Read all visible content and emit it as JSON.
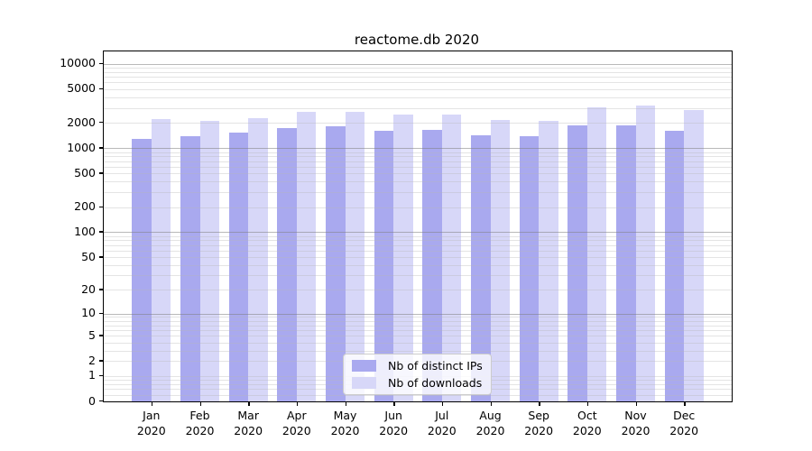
{
  "chart_data": {
    "type": "bar",
    "title": "reactome.db 2020",
    "categories": [
      "Jan",
      "Feb",
      "Mar",
      "Apr",
      "May",
      "Jun",
      "Jul",
      "Aug",
      "Sep",
      "Oct",
      "Nov",
      "Dec"
    ],
    "x_tick_second_line": "2020",
    "series": [
      {
        "name": "Nb of distinct IPs",
        "color": "#a9a9ef",
        "values": [
          1300,
          1400,
          1530,
          1720,
          1830,
          1620,
          1660,
          1430,
          1400,
          1870,
          1860,
          1610
        ]
      },
      {
        "name": "Nb of downloads",
        "color": "#d7d7f8",
        "values": [
          2200,
          2120,
          2290,
          2680,
          2680,
          2530,
          2480,
          2170,
          2120,
          3030,
          3200,
          2860
        ]
      }
    ],
    "y_axis": {
      "scale": "log1p",
      "ylim": [
        0,
        14000
      ],
      "ticks": [
        10000,
        5000,
        2000,
        1000,
        500,
        200,
        100,
        50,
        20,
        10,
        5,
        2,
        1,
        0
      ],
      "major_gridlines": [
        10,
        100,
        1000,
        10000
      ],
      "minor_gridlines": [
        0.2,
        0.4,
        0.6,
        0.8,
        1,
        2,
        3,
        4,
        5,
        6,
        7,
        8,
        9,
        20,
        30,
        40,
        50,
        60,
        70,
        80,
        90,
        200,
        300,
        400,
        500,
        600,
        700,
        800,
        900,
        2000,
        3000,
        4000,
        5000,
        6000,
        7000,
        8000,
        9000
      ]
    },
    "legend": {
      "position": "lower-center",
      "entries": [
        "Nb of distinct IPs",
        "Nb of downloads"
      ]
    },
    "grid": true
  },
  "colors": {
    "background": "#ffffff",
    "spine": "#000000",
    "grid_major": "rgba(128,128,128,0.55)",
    "grid_minor": "rgba(185,185,185,0.38)",
    "text": "#000000",
    "legend_border": "#cccccc",
    "legend_background": "rgba(255,255,255,0.8)"
  }
}
